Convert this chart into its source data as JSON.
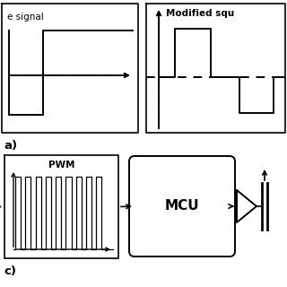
{
  "bg_color": "#ffffff",
  "line_color": "#000000",
  "panel_a_label": "a)",
  "panel_c_label": "c)",
  "sq_wave_label": "e signal",
  "mod_sq_label": "Modified squ",
  "pwm_label": "PWM",
  "mcu_label": "MCU",
  "font_size": 7.5,
  "mcu_font_size": 11
}
